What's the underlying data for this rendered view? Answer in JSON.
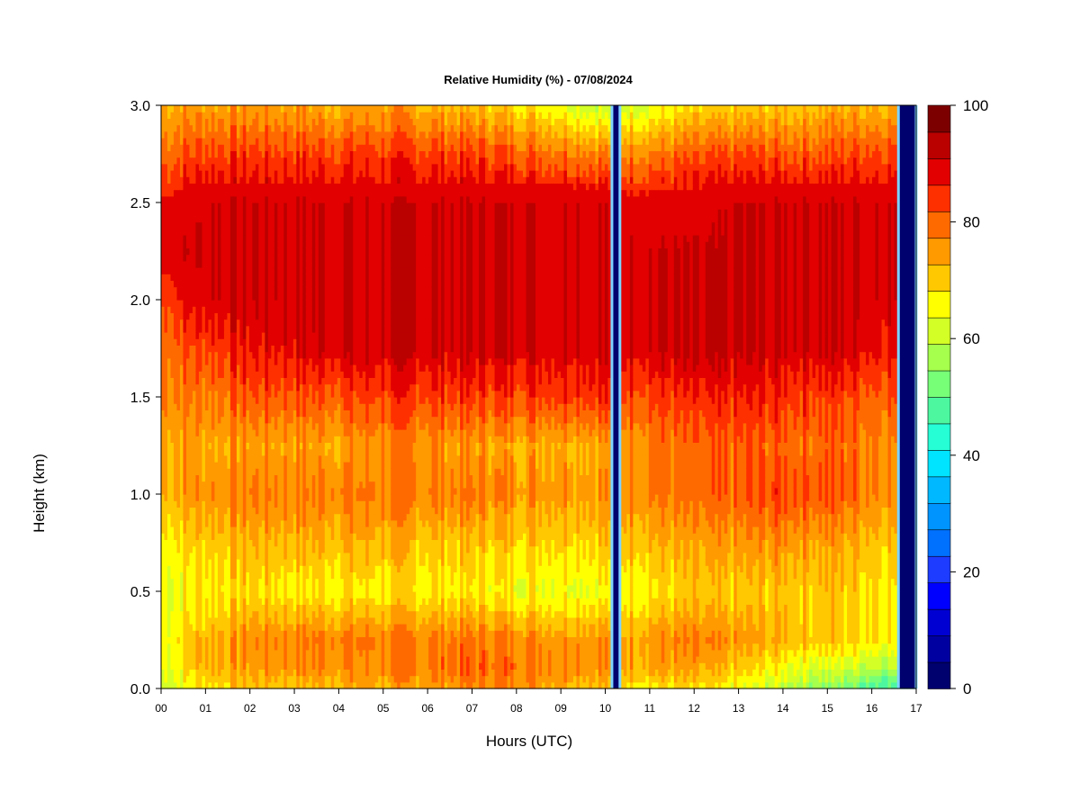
{
  "chart_data": {
    "type": "heatmap",
    "title": "Relative Humidity (%) - 07/08/2024",
    "xlabel": "Hours (UTC)",
    "ylabel": "Height (km)",
    "xlim": [
      0,
      17
    ],
    "ylim": [
      0,
      3
    ],
    "x_ticks": [
      "00",
      "01",
      "02",
      "03",
      "04",
      "05",
      "06",
      "07",
      "08",
      "09",
      "10",
      "11",
      "12",
      "13",
      "14",
      "15",
      "16",
      "17"
    ],
    "y_ticks": [
      "0.0",
      "0.5",
      "1.0",
      "1.5",
      "2.0",
      "2.5",
      "3.0"
    ],
    "colorbar": {
      "min": 0,
      "max": 100,
      "step": 5,
      "tick_values": [
        0,
        20,
        40,
        60,
        80,
        100
      ],
      "tick_labels": [
        "0",
        "20",
        "40",
        "60",
        "80",
        "100"
      ],
      "colors": [
        "#00006E",
        "#0000A0",
        "#0000D2",
        "#0000FF",
        "#1E3CFF",
        "#0070FF",
        "#0094FF",
        "#00B8FF",
        "#00E4FF",
        "#26FFD6",
        "#4CF7A0",
        "#78FF78",
        "#A6FF4C",
        "#D4FF26",
        "#FFFF00",
        "#FFC800",
        "#FF9A00",
        "#FF6A00",
        "#FF3000",
        "#E20000",
        "#BB0000",
        "#7D0000"
      ]
    },
    "gaps": [
      {
        "start_hour": 10.15,
        "end_hour": 10.33,
        "value": 0
      },
      {
        "start_hour": 16.6,
        "end_hour": 17.0,
        "value": 0
      }
    ],
    "height_profile_km": [
      0.0,
      0.1,
      0.25,
      0.5,
      0.75,
      1.0,
      1.25,
      1.5,
      1.75,
      2.0,
      2.25,
      2.5,
      2.75,
      3.0
    ],
    "time_profiles": [
      {
        "hour": 0.0,
        "rh": [
          68,
          70,
          72,
          70,
          74,
          80,
          82,
          86,
          88,
          90,
          98,
          96,
          88,
          80
        ]
      },
      {
        "hour": 0.5,
        "rh": [
          70,
          74,
          76,
          72,
          76,
          82,
          82,
          86,
          90,
          96,
          100,
          98,
          90,
          82
        ]
      },
      {
        "hour": 1.0,
        "rh": [
          76,
          80,
          80,
          74,
          78,
          84,
          82,
          86,
          92,
          100,
          100,
          100,
          92,
          82
        ]
      },
      {
        "hour": 2.0,
        "rh": [
          78,
          82,
          84,
          76,
          80,
          86,
          82,
          90,
          96,
          100,
          100,
          100,
          92,
          82
        ]
      },
      {
        "hour": 3.0,
        "rh": [
          78,
          84,
          86,
          74,
          80,
          86,
          82,
          90,
          98,
          100,
          100,
          100,
          92,
          82
        ]
      },
      {
        "hour": 4.0,
        "rh": [
          80,
          84,
          86,
          74,
          80,
          86,
          82,
          90,
          100,
          100,
          100,
          100,
          92,
          80
        ]
      },
      {
        "hour": 5.0,
        "rh": [
          80,
          84,
          86,
          74,
          80,
          86,
          84,
          92,
          100,
          100,
          100,
          100,
          92,
          82
        ]
      },
      {
        "hour": 6.0,
        "rh": [
          82,
          86,
          86,
          74,
          78,
          86,
          84,
          92,
          100,
          100,
          100,
          100,
          92,
          80
        ]
      },
      {
        "hour": 7.0,
        "rh": [
          84,
          88,
          86,
          74,
          78,
          86,
          82,
          92,
          100,
          100,
          100,
          100,
          92,
          78
        ]
      },
      {
        "hour": 8.0,
        "rh": [
          84,
          88,
          86,
          72,
          78,
          84,
          82,
          92,
          100,
          100,
          100,
          100,
          90,
          76
        ]
      },
      {
        "hour": 9.0,
        "rh": [
          82,
          86,
          84,
          72,
          78,
          84,
          82,
          94,
          100,
          100,
          100,
          100,
          88,
          72
        ]
      },
      {
        "hour": 10.0,
        "rh": [
          78,
          84,
          84,
          72,
          78,
          84,
          82,
          94,
          100,
          100,
          100,
          100,
          86,
          66
        ]
      },
      {
        "hour": 10.5,
        "rh": [
          76,
          82,
          82,
          74,
          80,
          86,
          84,
          92,
          100,
          100,
          100,
          98,
          86,
          70
        ]
      },
      {
        "hour": 11.0,
        "rh": [
          74,
          82,
          84,
          74,
          80,
          86,
          86,
          92,
          100,
          100,
          100,
          98,
          86,
          70
        ]
      },
      {
        "hour": 12.0,
        "rh": [
          74,
          80,
          84,
          76,
          80,
          86,
          86,
          92,
          100,
          100,
          100,
          98,
          88,
          74
        ]
      },
      {
        "hour": 13.0,
        "rh": [
          70,
          76,
          82,
          76,
          82,
          88,
          88,
          94,
          100,
          100,
          100,
          100,
          90,
          76
        ]
      },
      {
        "hour": 14.0,
        "rh": [
          66,
          72,
          80,
          78,
          84,
          92,
          88,
          94,
          100,
          100,
          100,
          100,
          90,
          78
        ]
      },
      {
        "hour": 15.0,
        "rh": [
          60,
          68,
          78,
          78,
          82,
          90,
          88,
          92,
          100,
          100,
          100,
          100,
          90,
          80
        ]
      },
      {
        "hour": 16.0,
        "rh": [
          54,
          66,
          76,
          76,
          80,
          86,
          86,
          90,
          98,
          100,
          100,
          100,
          92,
          80
        ]
      },
      {
        "hour": 16.6,
        "rh": [
          50,
          64,
          74,
          74,
          78,
          84,
          84,
          90,
          96,
          100,
          100,
          100,
          92,
          80
        ]
      }
    ]
  }
}
